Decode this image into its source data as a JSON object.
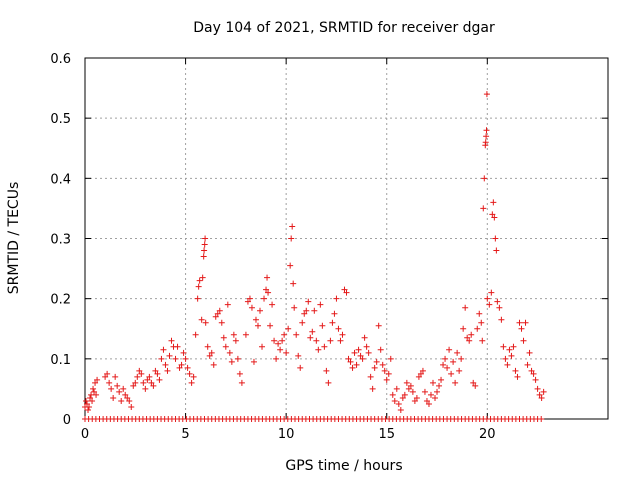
{
  "chart_data": {
    "type": "scatter",
    "title": "Day 104 of 2021, SRMTID for receiver dgar",
    "xlabel": "GPS time / hours",
    "ylabel": "SRMTID / TECUs",
    "xlim": [
      0,
      26
    ],
    "ylim": [
      0,
      0.6
    ],
    "x_ticks": [
      0,
      5,
      10,
      15,
      20
    ],
    "y_ticks": [
      0,
      0.1,
      0.2,
      0.3,
      0.4,
      0.5,
      0.6
    ],
    "x_tick_labels": [
      "0",
      "5",
      "10",
      "15",
      "20"
    ],
    "y_tick_labels": [
      "0",
      "0.1",
      "0.2",
      "0.3",
      "0.4",
      "0.5",
      "0.6"
    ],
    "grid": true,
    "marker": "+",
    "series": [
      {
        "name": "SRMTID",
        "color": "#e41a1a",
        "points": [
          [
            0.0,
            0.02
          ],
          [
            0.05,
            0.03
          ],
          [
            0.1,
            0.025
          ],
          [
            0.15,
            0.015
          ],
          [
            0.2,
            0.02
          ],
          [
            0.25,
            0.035
          ],
          [
            0.3,
            0.04
          ],
          [
            0.35,
            0.03
          ],
          [
            0.4,
            0.05
          ],
          [
            0.45,
            0.045
          ],
          [
            0.5,
            0.06
          ],
          [
            0.55,
            0.04
          ],
          [
            0.6,
            0.065
          ],
          [
            1.0,
            0.07
          ],
          [
            1.1,
            0.075
          ],
          [
            1.2,
            0.06
          ],
          [
            1.3,
            0.05
          ],
          [
            1.4,
            0.035
          ],
          [
            1.5,
            0.07
          ],
          [
            1.6,
            0.055
          ],
          [
            1.7,
            0.045
          ],
          [
            1.8,
            0.03
          ],
          [
            1.9,
            0.05
          ],
          [
            2.0,
            0.04
          ],
          [
            2.1,
            0.035
          ],
          [
            2.2,
            0.03
          ],
          [
            2.3,
            0.02
          ],
          [
            2.4,
            0.055
          ],
          [
            2.5,
            0.06
          ],
          [
            2.6,
            0.07
          ],
          [
            2.7,
            0.08
          ],
          [
            2.8,
            0.075
          ],
          [
            2.9,
            0.06
          ],
          [
            3.0,
            0.05
          ],
          [
            3.1,
            0.065
          ],
          [
            3.2,
            0.07
          ],
          [
            3.3,
            0.06
          ],
          [
            3.4,
            0.055
          ],
          [
            3.5,
            0.08
          ],
          [
            3.6,
            0.075
          ],
          [
            3.7,
            0.065
          ],
          [
            3.8,
            0.1
          ],
          [
            3.9,
            0.115
          ],
          [
            4.0,
            0.09
          ],
          [
            4.1,
            0.08
          ],
          [
            4.2,
            0.105
          ],
          [
            4.3,
            0.13
          ],
          [
            4.4,
            0.12
          ],
          [
            4.5,
            0.1
          ],
          [
            4.6,
            0.12
          ],
          [
            4.7,
            0.085
          ],
          [
            4.8,
            0.09
          ],
          [
            4.9,
            0.11
          ],
          [
            5.0,
            0.1
          ],
          [
            5.1,
            0.085
          ],
          [
            5.2,
            0.075
          ],
          [
            5.3,
            0.06
          ],
          [
            5.4,
            0.07
          ],
          [
            5.5,
            0.14
          ],
          [
            5.6,
            0.2
          ],
          [
            5.65,
            0.22
          ],
          [
            5.7,
            0.23
          ],
          [
            5.8,
            0.165
          ],
          [
            5.85,
            0.235
          ],
          [
            5.9,
            0.27
          ],
          [
            5.92,
            0.28
          ],
          [
            5.95,
            0.29
          ],
          [
            5.97,
            0.3
          ],
          [
            6.0,
            0.16
          ],
          [
            6.1,
            0.12
          ],
          [
            6.2,
            0.105
          ],
          [
            6.3,
            0.11
          ],
          [
            6.4,
            0.09
          ],
          [
            6.5,
            0.17
          ],
          [
            6.6,
            0.175
          ],
          [
            6.7,
            0.18
          ],
          [
            6.8,
            0.16
          ],
          [
            6.9,
            0.135
          ],
          [
            7.0,
            0.12
          ],
          [
            7.1,
            0.19
          ],
          [
            7.2,
            0.11
          ],
          [
            7.3,
            0.095
          ],
          [
            7.4,
            0.14
          ],
          [
            7.5,
            0.13
          ],
          [
            7.6,
            0.1
          ],
          [
            7.7,
            0.075
          ],
          [
            7.8,
            0.06
          ],
          [
            8.0,
            0.14
          ],
          [
            8.1,
            0.195
          ],
          [
            8.2,
            0.2
          ],
          [
            8.3,
            0.185
          ],
          [
            8.4,
            0.095
          ],
          [
            8.5,
            0.165
          ],
          [
            8.6,
            0.155
          ],
          [
            8.7,
            0.18
          ],
          [
            8.8,
            0.12
          ],
          [
            8.9,
            0.2
          ],
          [
            9.0,
            0.215
          ],
          [
            9.05,
            0.235
          ],
          [
            9.1,
            0.21
          ],
          [
            9.2,
            0.155
          ],
          [
            9.3,
            0.19
          ],
          [
            9.4,
            0.13
          ],
          [
            9.5,
            0.1
          ],
          [
            9.6,
            0.125
          ],
          [
            9.7,
            0.115
          ],
          [
            9.8,
            0.13
          ],
          [
            9.9,
            0.14
          ],
          [
            10.0,
            0.11
          ],
          [
            10.1,
            0.15
          ],
          [
            10.2,
            0.255
          ],
          [
            10.25,
            0.3
          ],
          [
            10.3,
            0.32
          ],
          [
            10.35,
            0.225
          ],
          [
            10.4,
            0.185
          ],
          [
            10.5,
            0.14
          ],
          [
            10.6,
            0.105
          ],
          [
            10.7,
            0.085
          ],
          [
            10.8,
            0.16
          ],
          [
            10.9,
            0.175
          ],
          [
            11.0,
            0.18
          ],
          [
            11.1,
            0.195
          ],
          [
            11.2,
            0.135
          ],
          [
            11.3,
            0.145
          ],
          [
            11.4,
            0.18
          ],
          [
            11.5,
            0.13
          ],
          [
            11.6,
            0.115
          ],
          [
            11.7,
            0.19
          ],
          [
            11.8,
            0.155
          ],
          [
            11.9,
            0.12
          ],
          [
            12.0,
            0.08
          ],
          [
            12.1,
            0.06
          ],
          [
            12.2,
            0.13
          ],
          [
            12.3,
            0.16
          ],
          [
            12.4,
            0.175
          ],
          [
            12.5,
            0.2
          ],
          [
            12.6,
            0.15
          ],
          [
            12.7,
            0.13
          ],
          [
            12.8,
            0.14
          ],
          [
            12.9,
            0.215
          ],
          [
            13.0,
            0.21
          ],
          [
            13.1,
            0.1
          ],
          [
            13.2,
            0.095
          ],
          [
            13.3,
            0.085
          ],
          [
            13.4,
            0.11
          ],
          [
            13.5,
            0.09
          ],
          [
            13.6,
            0.115
          ],
          [
            13.7,
            0.105
          ],
          [
            13.8,
            0.1
          ],
          [
            13.9,
            0.135
          ],
          [
            14.0,
            0.12
          ],
          [
            14.1,
            0.11
          ],
          [
            14.2,
            0.07
          ],
          [
            14.3,
            0.05
          ],
          [
            14.4,
            0.085
          ],
          [
            14.5,
            0.095
          ],
          [
            14.6,
            0.155
          ],
          [
            14.7,
            0.115
          ],
          [
            14.8,
            0.09
          ],
          [
            14.9,
            0.08
          ],
          [
            15.0,
            0.065
          ],
          [
            15.1,
            0.075
          ],
          [
            15.2,
            0.1
          ],
          [
            15.3,
            0.04
          ],
          [
            15.4,
            0.03
          ],
          [
            15.5,
            0.05
          ],
          [
            15.6,
            0.025
          ],
          [
            15.7,
            0.015
          ],
          [
            15.8,
            0.035
          ],
          [
            15.9,
            0.04
          ],
          [
            16.0,
            0.06
          ],
          [
            16.1,
            0.05
          ],
          [
            16.2,
            0.055
          ],
          [
            16.3,
            0.045
          ],
          [
            16.4,
            0.03
          ],
          [
            16.5,
            0.035
          ],
          [
            16.6,
            0.07
          ],
          [
            16.7,
            0.075
          ],
          [
            16.8,
            0.08
          ],
          [
            16.9,
            0.045
          ],
          [
            17.0,
            0.03
          ],
          [
            17.1,
            0.025
          ],
          [
            17.2,
            0.04
          ],
          [
            17.3,
            0.06
          ],
          [
            17.4,
            0.035
          ],
          [
            17.5,
            0.045
          ],
          [
            17.6,
            0.055
          ],
          [
            17.7,
            0.065
          ],
          [
            17.8,
            0.09
          ],
          [
            17.9,
            0.1
          ],
          [
            18.0,
            0.085
          ],
          [
            18.1,
            0.115
          ],
          [
            18.2,
            0.075
          ],
          [
            18.3,
            0.095
          ],
          [
            18.4,
            0.06
          ],
          [
            18.5,
            0.11
          ],
          [
            18.6,
            0.08
          ],
          [
            18.7,
            0.1
          ],
          [
            18.8,
            0.15
          ],
          [
            18.9,
            0.185
          ],
          [
            19.0,
            0.135
          ],
          [
            19.1,
            0.13
          ],
          [
            19.2,
            0.14
          ],
          [
            19.3,
            0.06
          ],
          [
            19.4,
            0.055
          ],
          [
            19.5,
            0.15
          ],
          [
            19.6,
            0.175
          ],
          [
            19.7,
            0.16
          ],
          [
            19.75,
            0.13
          ],
          [
            19.8,
            0.35
          ],
          [
            19.85,
            0.4
          ],
          [
            19.9,
            0.455
          ],
          [
            19.92,
            0.46
          ],
          [
            19.94,
            0.47
          ],
          [
            19.96,
            0.48
          ],
          [
            19.98,
            0.54
          ],
          [
            20.0,
            0.2
          ],
          [
            20.1,
            0.19
          ],
          [
            20.2,
            0.21
          ],
          [
            20.25,
            0.34
          ],
          [
            20.3,
            0.36
          ],
          [
            20.35,
            0.335
          ],
          [
            20.4,
            0.3
          ],
          [
            20.45,
            0.28
          ],
          [
            20.5,
            0.195
          ],
          [
            20.6,
            0.185
          ],
          [
            20.7,
            0.165
          ],
          [
            20.8,
            0.12
          ],
          [
            20.9,
            0.1
          ],
          [
            21.0,
            0.09
          ],
          [
            21.1,
            0.115
          ],
          [
            21.2,
            0.105
          ],
          [
            21.3,
            0.12
          ],
          [
            21.4,
            0.08
          ],
          [
            21.5,
            0.07
          ],
          [
            21.6,
            0.16
          ],
          [
            21.7,
            0.15
          ],
          [
            21.8,
            0.13
          ],
          [
            21.9,
            0.16
          ],
          [
            22.0,
            0.09
          ],
          [
            22.1,
            0.11
          ],
          [
            22.2,
            0.08
          ],
          [
            22.3,
            0.075
          ],
          [
            22.4,
            0.065
          ],
          [
            22.5,
            0.05
          ],
          [
            22.6,
            0.04
          ],
          [
            22.7,
            0.035
          ],
          [
            22.8,
            0.045
          ]
        ],
        "zero_band": {
          "from": 0,
          "to": 22.8,
          "step": 0.18,
          "y": 0
        }
      }
    ]
  }
}
